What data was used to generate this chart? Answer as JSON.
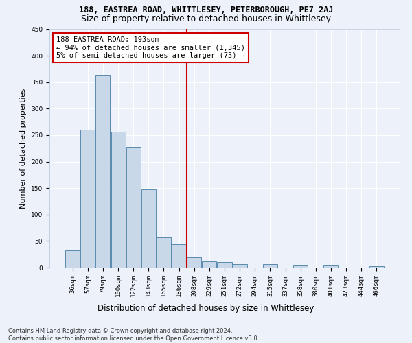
{
  "title1": "188, EASTREA ROAD, WHITTLESEY, PETERBOROUGH, PE7 2AJ",
  "title2": "Size of property relative to detached houses in Whittlesey",
  "xlabel": "Distribution of detached houses by size in Whittlesey",
  "ylabel": "Number of detached properties",
  "categories": [
    "36sqm",
    "57sqm",
    "79sqm",
    "100sqm",
    "122sqm",
    "143sqm",
    "165sqm",
    "186sqm",
    "208sqm",
    "229sqm",
    "251sqm",
    "272sqm",
    "294sqm",
    "315sqm",
    "337sqm",
    "358sqm",
    "380sqm",
    "401sqm",
    "423sqm",
    "444sqm",
    "466sqm"
  ],
  "values": [
    33,
    260,
    362,
    257,
    226,
    148,
    57,
    44,
    20,
    12,
    11,
    7,
    0,
    6,
    0,
    4,
    0,
    4,
    0,
    0,
    3
  ],
  "bar_color": "#c8d8e8",
  "bar_edge_color": "#5a8ab0",
  "vline_x": 7.5,
  "vline_color": "#cc0000",
  "annotation_text": "188 EASTREA ROAD: 193sqm\n← 94% of detached houses are smaller (1,345)\n5% of semi-detached houses are larger (75) →",
  "annotation_box_color": "#ffffff",
  "annotation_box_edge": "#cc0000",
  "ylim": [
    0,
    450
  ],
  "yticks": [
    0,
    50,
    100,
    150,
    200,
    250,
    300,
    350,
    400,
    450
  ],
  "background_color": "#edf2fa",
  "grid_color": "#ffffff",
  "footer": "Contains HM Land Registry data © Crown copyright and database right 2024.\nContains public sector information licensed under the Open Government Licence v3.0.",
  "title1_fontsize": 8.5,
  "title2_fontsize": 9,
  "xlabel_fontsize": 8.5,
  "ylabel_fontsize": 8,
  "tick_fontsize": 6.5,
  "annotation_fontsize": 7.5,
  "footer_fontsize": 6
}
